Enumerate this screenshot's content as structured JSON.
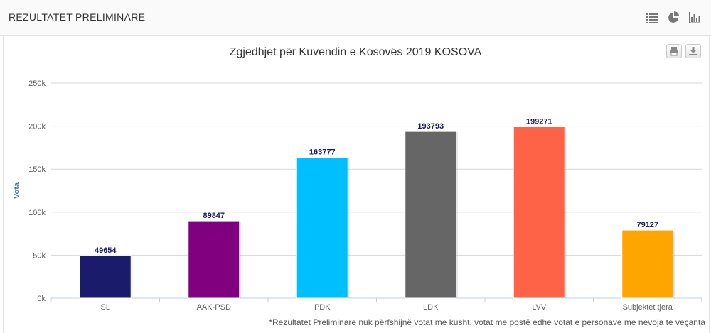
{
  "header": {
    "title": "REZULTATET PRELIMINARE",
    "icons": [
      "list-icon",
      "pie-chart-icon",
      "bar-chart-icon"
    ]
  },
  "chart_toolbar": {
    "icons": [
      "print-icon",
      "download-icon"
    ]
  },
  "chart_data": {
    "type": "bar",
    "title": "Zgjedhjet për Kuvendin e Kosovës 2019 KOSOVA",
    "xlabel": "",
    "ylabel": "Vota",
    "ylim": [
      0,
      250000
    ],
    "yticks": [
      0,
      50000,
      100000,
      150000,
      200000,
      250000
    ],
    "ytick_labels": [
      "0k",
      "50k",
      "100k",
      "150k",
      "200k",
      "250k"
    ],
    "grid": true,
    "categories": [
      "SL",
      "AAK-PSD",
      "PDK",
      "LDK",
      "LVV",
      "Subjektet tjera"
    ],
    "values": [
      49654,
      89847,
      163777,
      193793,
      199271,
      79127
    ],
    "colors": [
      "#1b1b6b",
      "#800080",
      "#00bfff",
      "#666666",
      "#ff6347",
      "#ffa500"
    ],
    "data_labels": true
  },
  "footnote": "*Rezultatet Preliminare nuk përfshijnë votat me kusht, votat me postë edhe votat e personave me nevoja te veçanta"
}
